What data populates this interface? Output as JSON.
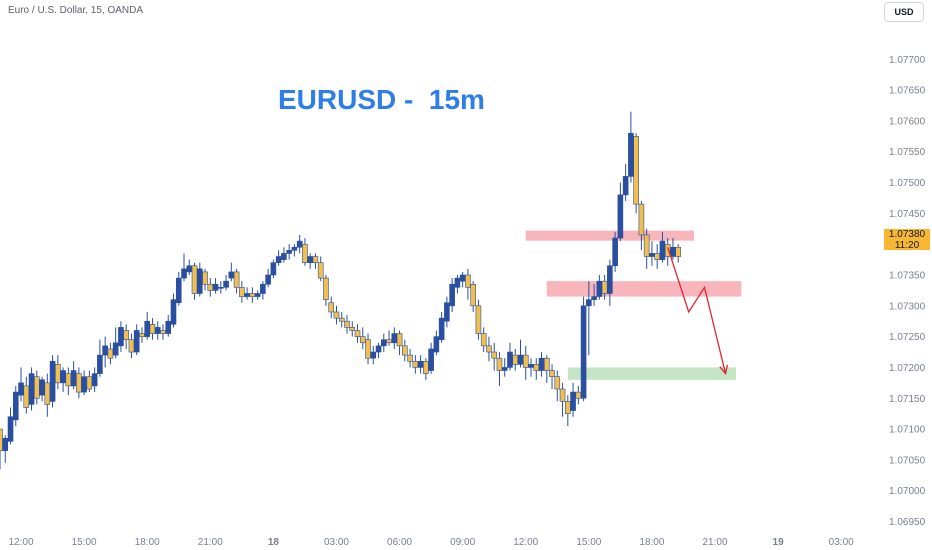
{
  "header": {
    "symbol": "Euro / U.S. Dollar, 15, OANDA",
    "currency": "USD"
  },
  "colors": {
    "bull": "#2a4fa0",
    "bear": "#f1bf4d",
    "resistance_zone": "#f7a8b0",
    "support_zone": "#b9e0b9",
    "projection": "#e0252f",
    "title": "#2e7de8",
    "price_badge": "#f7b733"
  },
  "current_price": {
    "value": "1.07380",
    "countdown": "11:20"
  },
  "chart_data": {
    "type": "candlestick",
    "title": "EURUSD -  15m",
    "xlabel": "",
    "ylabel": "",
    "ylim": [
      1.0692,
      1.0778
    ],
    "xlim": [
      0,
      167
    ],
    "y_ticks": [
      "1.07700",
      "1.07650",
      "1.07600",
      "1.07550",
      "1.07500",
      "1.07450",
      "1.07400",
      "1.07350",
      "1.07300",
      "1.07250",
      "1.07200",
      "1.07150",
      "1.07100",
      "1.07050",
      "1.07000",
      "1.06950"
    ],
    "x_ticks": [
      {
        "label": "12:00",
        "x": 4
      },
      {
        "label": "15:00",
        "x": 16
      },
      {
        "label": "18:00",
        "x": 28
      },
      {
        "label": "21:00",
        "x": 40
      },
      {
        "label": "18",
        "x": 52
      },
      {
        "label": "03:00",
        "x": 64
      },
      {
        "label": "06:00",
        "x": 76
      },
      {
        "label": "09:00",
        "x": 88
      },
      {
        "label": "12:00",
        "x": 100
      },
      {
        "label": "15:00",
        "x": 112
      },
      {
        "label": "18:00",
        "x": 124
      },
      {
        "label": "21:00",
        "x": 136
      },
      {
        "label": "19",
        "x": 148
      },
      {
        "label": "03:00",
        "x": 160
      }
    ],
    "series": [
      {
        "candles": [
          [
            1.071,
            1.07065,
            1.07075,
            1.07035
          ],
          [
            1.07065,
            1.07085,
            1.0709,
            1.07045
          ],
          [
            1.0708,
            1.0712,
            1.07135,
            1.07075
          ],
          [
            1.07115,
            1.0716,
            1.0717,
            1.07105
          ],
          [
            1.07155,
            1.07175,
            1.072,
            1.07145
          ],
          [
            1.0717,
            1.07135,
            1.07185,
            1.07125
          ],
          [
            1.0714,
            1.0719,
            1.072,
            1.0713
          ],
          [
            1.07185,
            1.0715,
            1.07195,
            1.0714
          ],
          [
            1.07155,
            1.0718,
            1.07185,
            1.07145
          ],
          [
            1.07175,
            1.0714,
            1.0719,
            1.0712
          ],
          [
            1.07145,
            1.0721,
            1.0722,
            1.07135
          ],
          [
            1.07205,
            1.07175,
            1.0722,
            1.07165
          ],
          [
            1.07175,
            1.07195,
            1.072,
            1.0716
          ],
          [
            1.0719,
            1.0717,
            1.072,
            1.07155
          ],
          [
            1.0717,
            1.07195,
            1.0721,
            1.07165
          ],
          [
            1.0719,
            1.0716,
            1.072,
            1.0715
          ],
          [
            1.0716,
            1.07185,
            1.07195,
            1.07155
          ],
          [
            1.07185,
            1.07165,
            1.07195,
            1.0716
          ],
          [
            1.0717,
            1.0719,
            1.072,
            1.0716
          ],
          [
            1.0719,
            1.0722,
            1.07245,
            1.07185
          ],
          [
            1.0722,
            1.07235,
            1.0725,
            1.072
          ],
          [
            1.0723,
            1.07215,
            1.0724,
            1.07205
          ],
          [
            1.0722,
            1.0724,
            1.07265,
            1.07215
          ],
          [
            1.07235,
            1.07265,
            1.07275,
            1.07225
          ],
          [
            1.0726,
            1.07245,
            1.0727,
            1.0723
          ],
          [
            1.07245,
            1.07225,
            1.07255,
            1.07215
          ],
          [
            1.07225,
            1.0726,
            1.0727,
            1.0722
          ],
          [
            1.07255,
            1.0725,
            1.07265,
            1.0724
          ],
          [
            1.0725,
            1.07275,
            1.0729,
            1.07245
          ],
          [
            1.0727,
            1.07255,
            1.0728,
            1.07245
          ],
          [
            1.07255,
            1.07265,
            1.07275,
            1.07245
          ],
          [
            1.0726,
            1.07255,
            1.0727,
            1.07245
          ],
          [
            1.07255,
            1.07275,
            1.07285,
            1.0725
          ],
          [
            1.0727,
            1.0731,
            1.0732,
            1.07265
          ],
          [
            1.07305,
            1.07345,
            1.07355,
            1.073
          ],
          [
            1.07345,
            1.0736,
            1.07385,
            1.0734
          ],
          [
            1.07355,
            1.07365,
            1.07375,
            1.0735
          ],
          [
            1.07365,
            1.0732,
            1.0737,
            1.0731
          ],
          [
            1.0732,
            1.0736,
            1.0737,
            1.07315
          ],
          [
            1.07355,
            1.07335,
            1.0736,
            1.07325
          ],
          [
            1.07335,
            1.07325,
            1.07345,
            1.07315
          ],
          [
            1.07325,
            1.07335,
            1.07345,
            1.0732
          ],
          [
            1.0733,
            1.0733,
            1.0734,
            1.0732
          ],
          [
            1.0733,
            1.0734,
            1.0735,
            1.07325
          ],
          [
            1.07345,
            1.07355,
            1.0737,
            1.0734
          ],
          [
            1.07355,
            1.0733,
            1.0736,
            1.0732
          ],
          [
            1.0733,
            1.07315,
            1.0734,
            1.07305
          ],
          [
            1.07315,
            1.0732,
            1.0733,
            1.0731
          ],
          [
            1.0732,
            1.07315,
            1.0733,
            1.07305
          ],
          [
            1.07315,
            1.0732,
            1.07325,
            1.0731
          ],
          [
            1.0732,
            1.07335,
            1.0734,
            1.0731
          ],
          [
            1.07335,
            1.0735,
            1.0736,
            1.0733
          ],
          [
            1.0735,
            1.0737,
            1.07375,
            1.07345
          ],
          [
            1.0737,
            1.0738,
            1.0739,
            1.07365
          ],
          [
            1.07375,
            1.07385,
            1.07395,
            1.0737
          ],
          [
            1.07385,
            1.0739,
            1.074,
            1.07375
          ],
          [
            1.0739,
            1.07395,
            1.074,
            1.0738
          ],
          [
            1.07395,
            1.07405,
            1.07415,
            1.07385
          ],
          [
            1.074,
            1.0737,
            1.0741,
            1.07365
          ],
          [
            1.0737,
            1.0738,
            1.07385,
            1.0736
          ],
          [
            1.0738,
            1.0737,
            1.07385,
            1.0736
          ],
          [
            1.0737,
            1.07345,
            1.0738,
            1.0734
          ],
          [
            1.07345,
            1.0731,
            1.0735,
            1.073
          ],
          [
            1.07305,
            1.0729,
            1.07315,
            1.0728
          ],
          [
            1.0729,
            1.0728,
            1.073,
            1.0727
          ],
          [
            1.0728,
            1.07275,
            1.0729,
            1.07265
          ],
          [
            1.07275,
            1.07265,
            1.07285,
            1.07255
          ],
          [
            1.07265,
            1.0726,
            1.07275,
            1.0725
          ],
          [
            1.0726,
            1.0725,
            1.0727,
            1.0724
          ],
          [
            1.0725,
            1.0724,
            1.07265,
            1.0723
          ],
          [
            1.07245,
            1.07215,
            1.07255,
            1.07205
          ],
          [
            1.07215,
            1.07225,
            1.07235,
            1.07205
          ],
          [
            1.07225,
            1.07235,
            1.0724,
            1.07215
          ],
          [
            1.07235,
            1.07245,
            1.07255,
            1.07225
          ],
          [
            1.07245,
            1.0724,
            1.0726,
            1.07235
          ],
          [
            1.0724,
            1.07255,
            1.07265,
            1.0723
          ],
          [
            1.07255,
            1.07235,
            1.0726,
            1.0722
          ],
          [
            1.07235,
            1.0722,
            1.07245,
            1.0721
          ],
          [
            1.0722,
            1.0721,
            1.0723,
            1.072
          ],
          [
            1.0721,
            1.072,
            1.0722,
            1.0719
          ],
          [
            1.072,
            1.0721,
            1.0722,
            1.0719
          ],
          [
            1.0721,
            1.0719,
            1.07215,
            1.0718
          ],
          [
            1.07195,
            1.0723,
            1.0724,
            1.0719
          ],
          [
            1.07225,
            1.0725,
            1.0726,
            1.0722
          ],
          [
            1.07245,
            1.0728,
            1.0729,
            1.0724
          ],
          [
            1.07275,
            1.07305,
            1.07315,
            1.07265
          ],
          [
            1.073,
            1.07335,
            1.07345,
            1.0729
          ],
          [
            1.0733,
            1.07345,
            1.0735,
            1.0732
          ],
          [
            1.0734,
            1.0735,
            1.07355,
            1.0733
          ],
          [
            1.0735,
            1.0733,
            1.0736,
            1.0731
          ],
          [
            1.07335,
            1.073,
            1.0734,
            1.0729
          ],
          [
            1.073,
            1.07255,
            1.0731,
            1.07245
          ],
          [
            1.07255,
            1.07235,
            1.07265,
            1.07225
          ],
          [
            1.07235,
            1.07225,
            1.0725,
            1.0721
          ],
          [
            1.07225,
            1.07215,
            1.0724,
            1.07195
          ],
          [
            1.07215,
            1.07195,
            1.07225,
            1.0717
          ],
          [
            1.07195,
            1.072,
            1.07215,
            1.07185
          ],
          [
            1.072,
            1.07225,
            1.0724,
            1.07195
          ],
          [
            1.0722,
            1.07205,
            1.0723,
            1.07195
          ],
          [
            1.07205,
            1.0722,
            1.07245,
            1.072
          ],
          [
            1.0722,
            1.072,
            1.07235,
            1.0718
          ],
          [
            1.072,
            1.07205,
            1.07215,
            1.07185
          ],
          [
            1.07205,
            1.07195,
            1.07215,
            1.0718
          ],
          [
            1.07195,
            1.07215,
            1.07225,
            1.07185
          ],
          [
            1.07215,
            1.07195,
            1.0722,
            1.07175
          ],
          [
            1.07195,
            1.07185,
            1.07205,
            1.07165
          ],
          [
            1.07185,
            1.07165,
            1.07195,
            1.07145
          ],
          [
            1.07165,
            1.07145,
            1.07175,
            1.0712
          ],
          [
            1.07145,
            1.07125,
            1.07155,
            1.07105
          ],
          [
            1.0713,
            1.0716,
            1.07175,
            1.0712
          ],
          [
            1.0716,
            1.0715,
            1.0717,
            1.0714
          ],
          [
            1.0715,
            1.073,
            1.07315,
            1.07145
          ],
          [
            1.073,
            1.0731,
            1.0734,
            1.0722
          ],
          [
            1.0731,
            1.07315,
            1.07335,
            1.073
          ],
          [
            1.07315,
            1.0734,
            1.0735,
            1.0731
          ],
          [
            1.0734,
            1.0732,
            1.0735,
            1.0731
          ],
          [
            1.0732,
            1.07365,
            1.07375,
            1.073
          ],
          [
            1.07365,
            1.0741,
            1.0742,
            1.07355
          ],
          [
            1.0741,
            1.0748,
            1.075,
            1.07405
          ],
          [
            1.0748,
            1.0751,
            1.0753,
            1.0747
          ],
          [
            1.0751,
            1.0758,
            1.07615,
            1.075
          ],
          [
            1.07575,
            1.07465,
            1.0758,
            1.0745
          ],
          [
            1.07465,
            1.07415,
            1.0747,
            1.0739
          ],
          [
            1.07415,
            1.0738,
            1.07425,
            1.0736
          ],
          [
            1.0738,
            1.07385,
            1.07405,
            1.07365
          ],
          [
            1.07385,
            1.07375,
            1.074,
            1.0736
          ],
          [
            1.07375,
            1.07405,
            1.0742,
            1.0737
          ],
          [
            1.074,
            1.0738,
            1.0741,
            1.07365
          ],
          [
            1.0738,
            1.07395,
            1.0741,
            1.07375
          ],
          [
            1.07395,
            1.0738,
            1.074,
            1.0737
          ]
        ]
      }
    ],
    "zones": [
      {
        "kind": "resistance",
        "x_start": 100,
        "x_end": 132,
        "y_low": 1.07412,
        "y_high": 1.07422
      },
      {
        "kind": "resistance",
        "x_start": 104,
        "x_end": 141,
        "y_low": 1.07315,
        "y_high": 1.0734
      },
      {
        "kind": "support",
        "x_start": 108,
        "x_end": 140,
        "y_low": 1.0718,
        "y_high": 1.072
      }
    ],
    "projection": {
      "points": [
        [
          127,
          1.07395
        ],
        [
          131,
          1.0729
        ],
        [
          134,
          1.0733
        ],
        [
          138,
          1.0719
        ]
      ]
    }
  }
}
